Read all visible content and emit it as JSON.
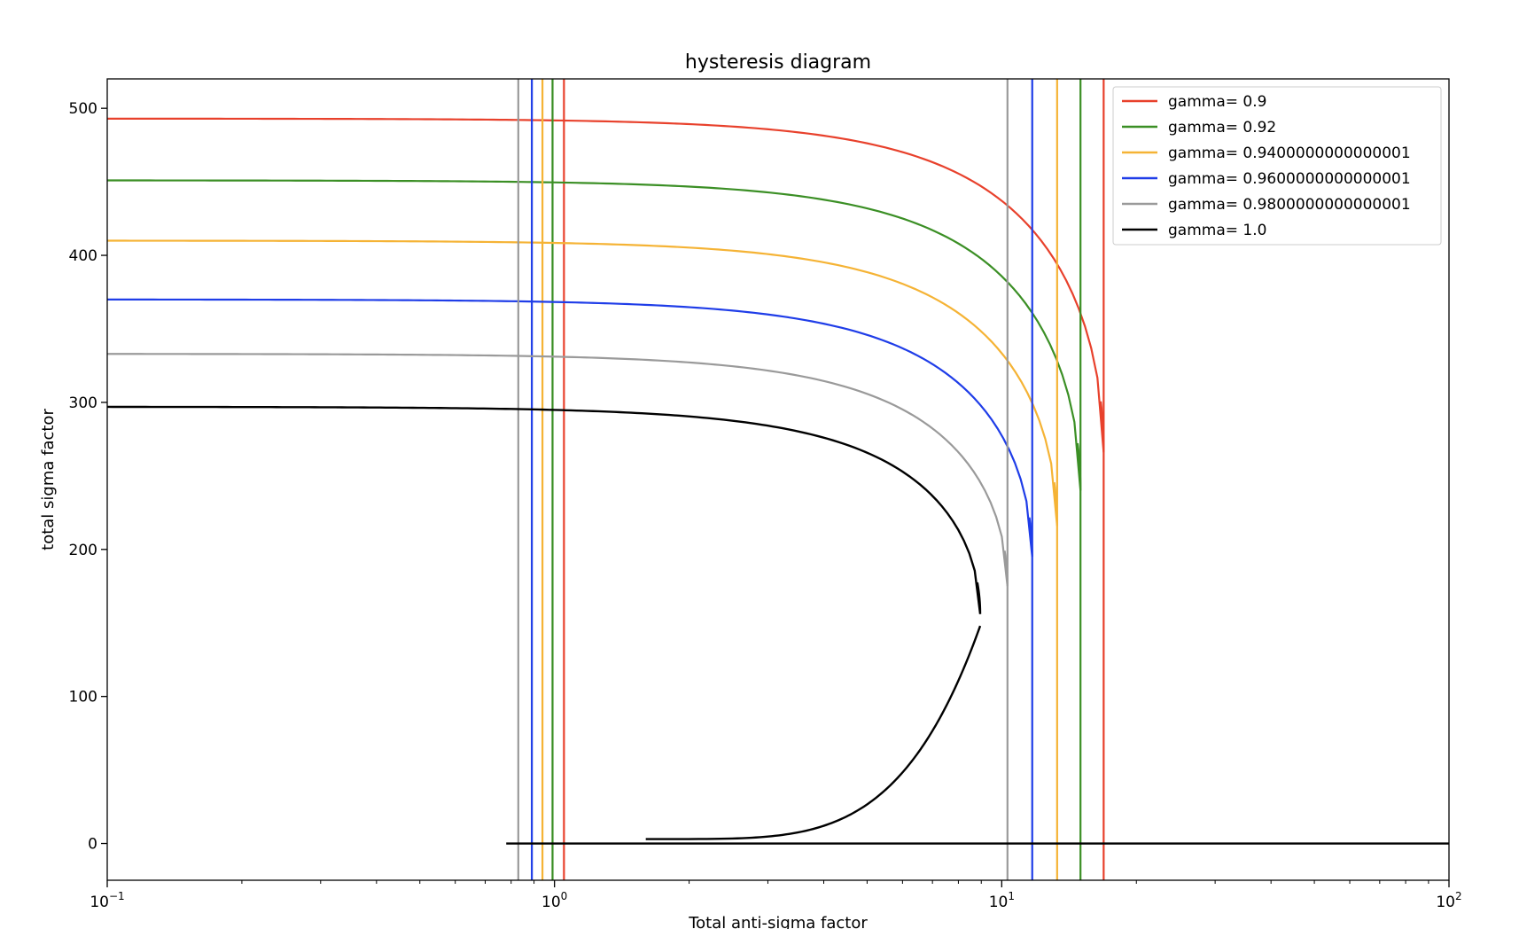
{
  "chart_data": {
    "type": "line",
    "title": "hysteresis diagram",
    "xlabel": "Total anti-sigma factor",
    "ylabel": "total sigma factor",
    "xscale": "log",
    "xlim": [
      0.1,
      100
    ],
    "ylim": [
      -25,
      520
    ],
    "x_ticks": [
      {
        "value": 0.1,
        "base": "10",
        "exp": "−1"
      },
      {
        "value": 1,
        "base": "10",
        "exp": "0"
      },
      {
        "value": 10,
        "base": "10",
        "exp": "1"
      },
      {
        "value": 100,
        "base": "10",
        "exp": "2"
      }
    ],
    "y_ticks": [
      "0",
      "100",
      "200",
      "300",
      "400",
      "500"
    ],
    "legend_position": "top-right",
    "grid": false,
    "series": [
      {
        "name": "gamma= 0.9",
        "color": "#e8412c",
        "S0": 493,
        "C": 16.9,
        "tip": 266,
        "vlines": [
          1.05,
          16.9
        ]
      },
      {
        "name": "gamma= 0.92",
        "color": "#3b8f25",
        "S0": 451,
        "C": 15.0,
        "tip": 240,
        "vlines": [
          0.99,
          15.0
        ]
      },
      {
        "name": "gamma= 0.9400000000000001",
        "color": "#f5b335",
        "S0": 410,
        "C": 13.3,
        "tip": 216,
        "vlines": [
          0.94,
          13.3
        ]
      },
      {
        "name": "gamma= 0.9600000000000001",
        "color": "#1f3de8",
        "S0": 370,
        "C": 11.7,
        "tip": 195,
        "vlines": [
          0.89,
          11.7
        ]
      },
      {
        "name": "gamma= 0.9800000000000001",
        "color": "#9a9a9a",
        "S0": 333,
        "C": 10.3,
        "tip": 175,
        "vlines": [
          0.83,
          10.3
        ]
      },
      {
        "name": "gamma= 1.0",
        "color": "#000000",
        "upper": {
          "S0": 297,
          "C": 8.95,
          "tip": 156
        },
        "lower": {
          "x_start": 1.6,
          "y_start": 3,
          "x_end": 8.95,
          "y_end": 148
        },
        "baseline": {
          "x_start": 0.78,
          "x_end": 100,
          "y": 0
        }
      }
    ]
  }
}
